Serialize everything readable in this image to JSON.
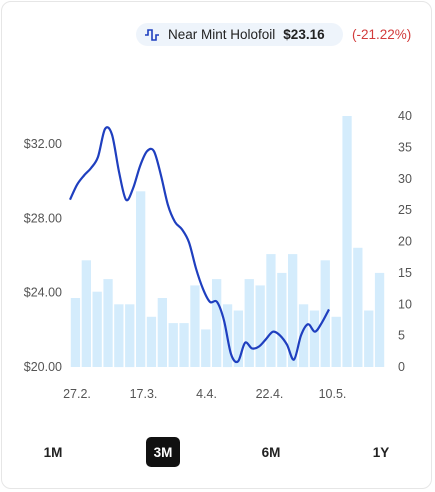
{
  "legend": {
    "icon": "line-chart-icon",
    "label": "Near Mint Holofoil",
    "price": "$23.16",
    "change": "(-21.22%)",
    "change_color": "#d23b3b"
  },
  "range_buttons": [
    {
      "label": "1M",
      "active": false
    },
    {
      "label": "3M",
      "active": true
    },
    {
      "label": "6M",
      "active": false
    },
    {
      "label": "1Y",
      "active": false
    }
  ],
  "colors": {
    "line": "#1f3fbf",
    "bars": "#d4ecfc"
  },
  "chart_data": {
    "type": "line",
    "title": "",
    "x_tick_labels": [
      "27.2.",
      "17.3.",
      "4.4.",
      "22.4.",
      "10.5."
    ],
    "y_left": {
      "ticks": [
        "$20.00",
        "$24.00",
        "$28.00",
        "$32.00"
      ],
      "range": [
        20,
        33.5
      ]
    },
    "y_right": {
      "ticks": [
        "0",
        "5",
        "10",
        "15",
        "20",
        "25",
        "30",
        "35",
        "40"
      ],
      "range": [
        0,
        40
      ]
    },
    "x_range": [
      0,
      90
    ],
    "x_tick_positions": [
      2,
      21,
      39,
      57,
      75
    ],
    "price_series": {
      "axis": "left",
      "points": [
        [
          0,
          29.0
        ],
        [
          2,
          29.8
        ],
        [
          4,
          30.3
        ],
        [
          6,
          30.7
        ],
        [
          8,
          31.3
        ],
        [
          10,
          32.8
        ],
        [
          12,
          32.5
        ],
        [
          14,
          30.5
        ],
        [
          16,
          29.0
        ],
        [
          18,
          29.6
        ],
        [
          20,
          30.8
        ],
        [
          22,
          31.6
        ],
        [
          24,
          31.6
        ],
        [
          26,
          30.3
        ],
        [
          28,
          28.7
        ],
        [
          30,
          27.8
        ],
        [
          32,
          27.4
        ],
        [
          34,
          26.7
        ],
        [
          36,
          25.3
        ],
        [
          38,
          24.2
        ],
        [
          40,
          23.5
        ],
        [
          42,
          23.5
        ],
        [
          44,
          22.5
        ],
        [
          46,
          20.7
        ],
        [
          48,
          20.3
        ],
        [
          50,
          21.3
        ],
        [
          52,
          21.0
        ],
        [
          54,
          21.1
        ],
        [
          56,
          21.5
        ],
        [
          58,
          21.9
        ],
        [
          60,
          21.7
        ],
        [
          62,
          21.2
        ],
        [
          64,
          20.4
        ],
        [
          66,
          21.7
        ],
        [
          68,
          22.3
        ],
        [
          70,
          21.9
        ],
        [
          72,
          22.4
        ],
        [
          74,
          23.1
        ]
      ]
    },
    "volume_series": {
      "axis": "right",
      "values": [
        11,
        17,
        12,
        14,
        10,
        10,
        28,
        8,
        11,
        7,
        7,
        13,
        6,
        14,
        10,
        9,
        14,
        13,
        18,
        15,
        18,
        10,
        9,
        17,
        8,
        40,
        19,
        9,
        15
      ]
    },
    "grid": false
  }
}
